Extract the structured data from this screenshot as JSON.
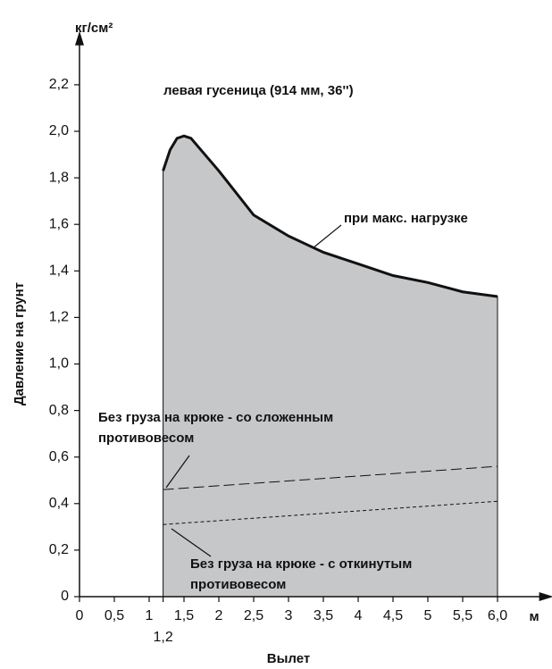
{
  "chart_data": {
    "type": "area",
    "title": "левая гусеница (914 мм, 36'')",
    "y_label": "Давление на грунт",
    "x_label": "Вылет",
    "y_unit": "кг/см²",
    "x_unit": "м",
    "xlim": [
      0,
      6.7
    ],
    "ylim": [
      0,
      2.4
    ],
    "xticks": [
      0,
      {
        "value": 0.5,
        "label": "0,5"
      },
      1,
      {
        "value": 1.2,
        "label": "1,2"
      },
      {
        "value": 1.5,
        "label": "1,5"
      },
      2,
      {
        "value": 2.5,
        "label": "2,5"
      },
      3,
      {
        "value": 3.5,
        "label": "3,5"
      },
      4,
      {
        "value": 4.5,
        "label": "4,5"
      },
      5,
      {
        "value": 5.5,
        "label": "5,5"
      },
      {
        "value": 6.0,
        "label": "6,0"
      }
    ],
    "yticks": [
      0,
      {
        "value": 0.2,
        "label": "0,2"
      },
      {
        "value": 0.4,
        "label": "0,4"
      },
      {
        "value": 0.6,
        "label": "0,6"
      },
      {
        "value": 0.8,
        "label": "0,8"
      },
      {
        "value": 1.0,
        "label": "1,0"
      },
      {
        "value": 1.2,
        "label": "1,2"
      },
      {
        "value": 1.4,
        "label": "1,4"
      },
      {
        "value": 1.6,
        "label": "1,6"
      },
      {
        "value": 1.8,
        "label": "1,8"
      },
      {
        "value": 2.0,
        "label": "2,0"
      },
      {
        "value": 2.2,
        "label": "2,2"
      }
    ],
    "fill_color": "#c6c7c9",
    "series": [
      {
        "name": "при макс. нагрузке",
        "color": "#111111",
        "style": "solid",
        "x": [
          1.2,
          1.3,
          1.4,
          1.5,
          1.6,
          1.8,
          2.0,
          2.5,
          3.0,
          3.5,
          4.0,
          4.5,
          5.0,
          5.5,
          6.0
        ],
        "values": [
          1.83,
          1.92,
          1.97,
          1.98,
          1.97,
          1.9,
          1.83,
          1.64,
          1.55,
          1.48,
          1.43,
          1.38,
          1.35,
          1.31,
          1.29
        ]
      },
      {
        "name": [
          "Без груза на крюке - со сложенным",
          "противовесом"
        ],
        "color": "#111111",
        "style": "dashed",
        "x": [
          1.2,
          6.0
        ],
        "values": [
          0.46,
          0.56
        ]
      },
      {
        "name": [
          "Без груза на крюке - с откинутым",
          "противовесом"
        ],
        "color": "#111111",
        "style": "dotted",
        "x": [
          1.2,
          6.0
        ],
        "values": [
          0.31,
          0.41
        ]
      }
    ]
  }
}
